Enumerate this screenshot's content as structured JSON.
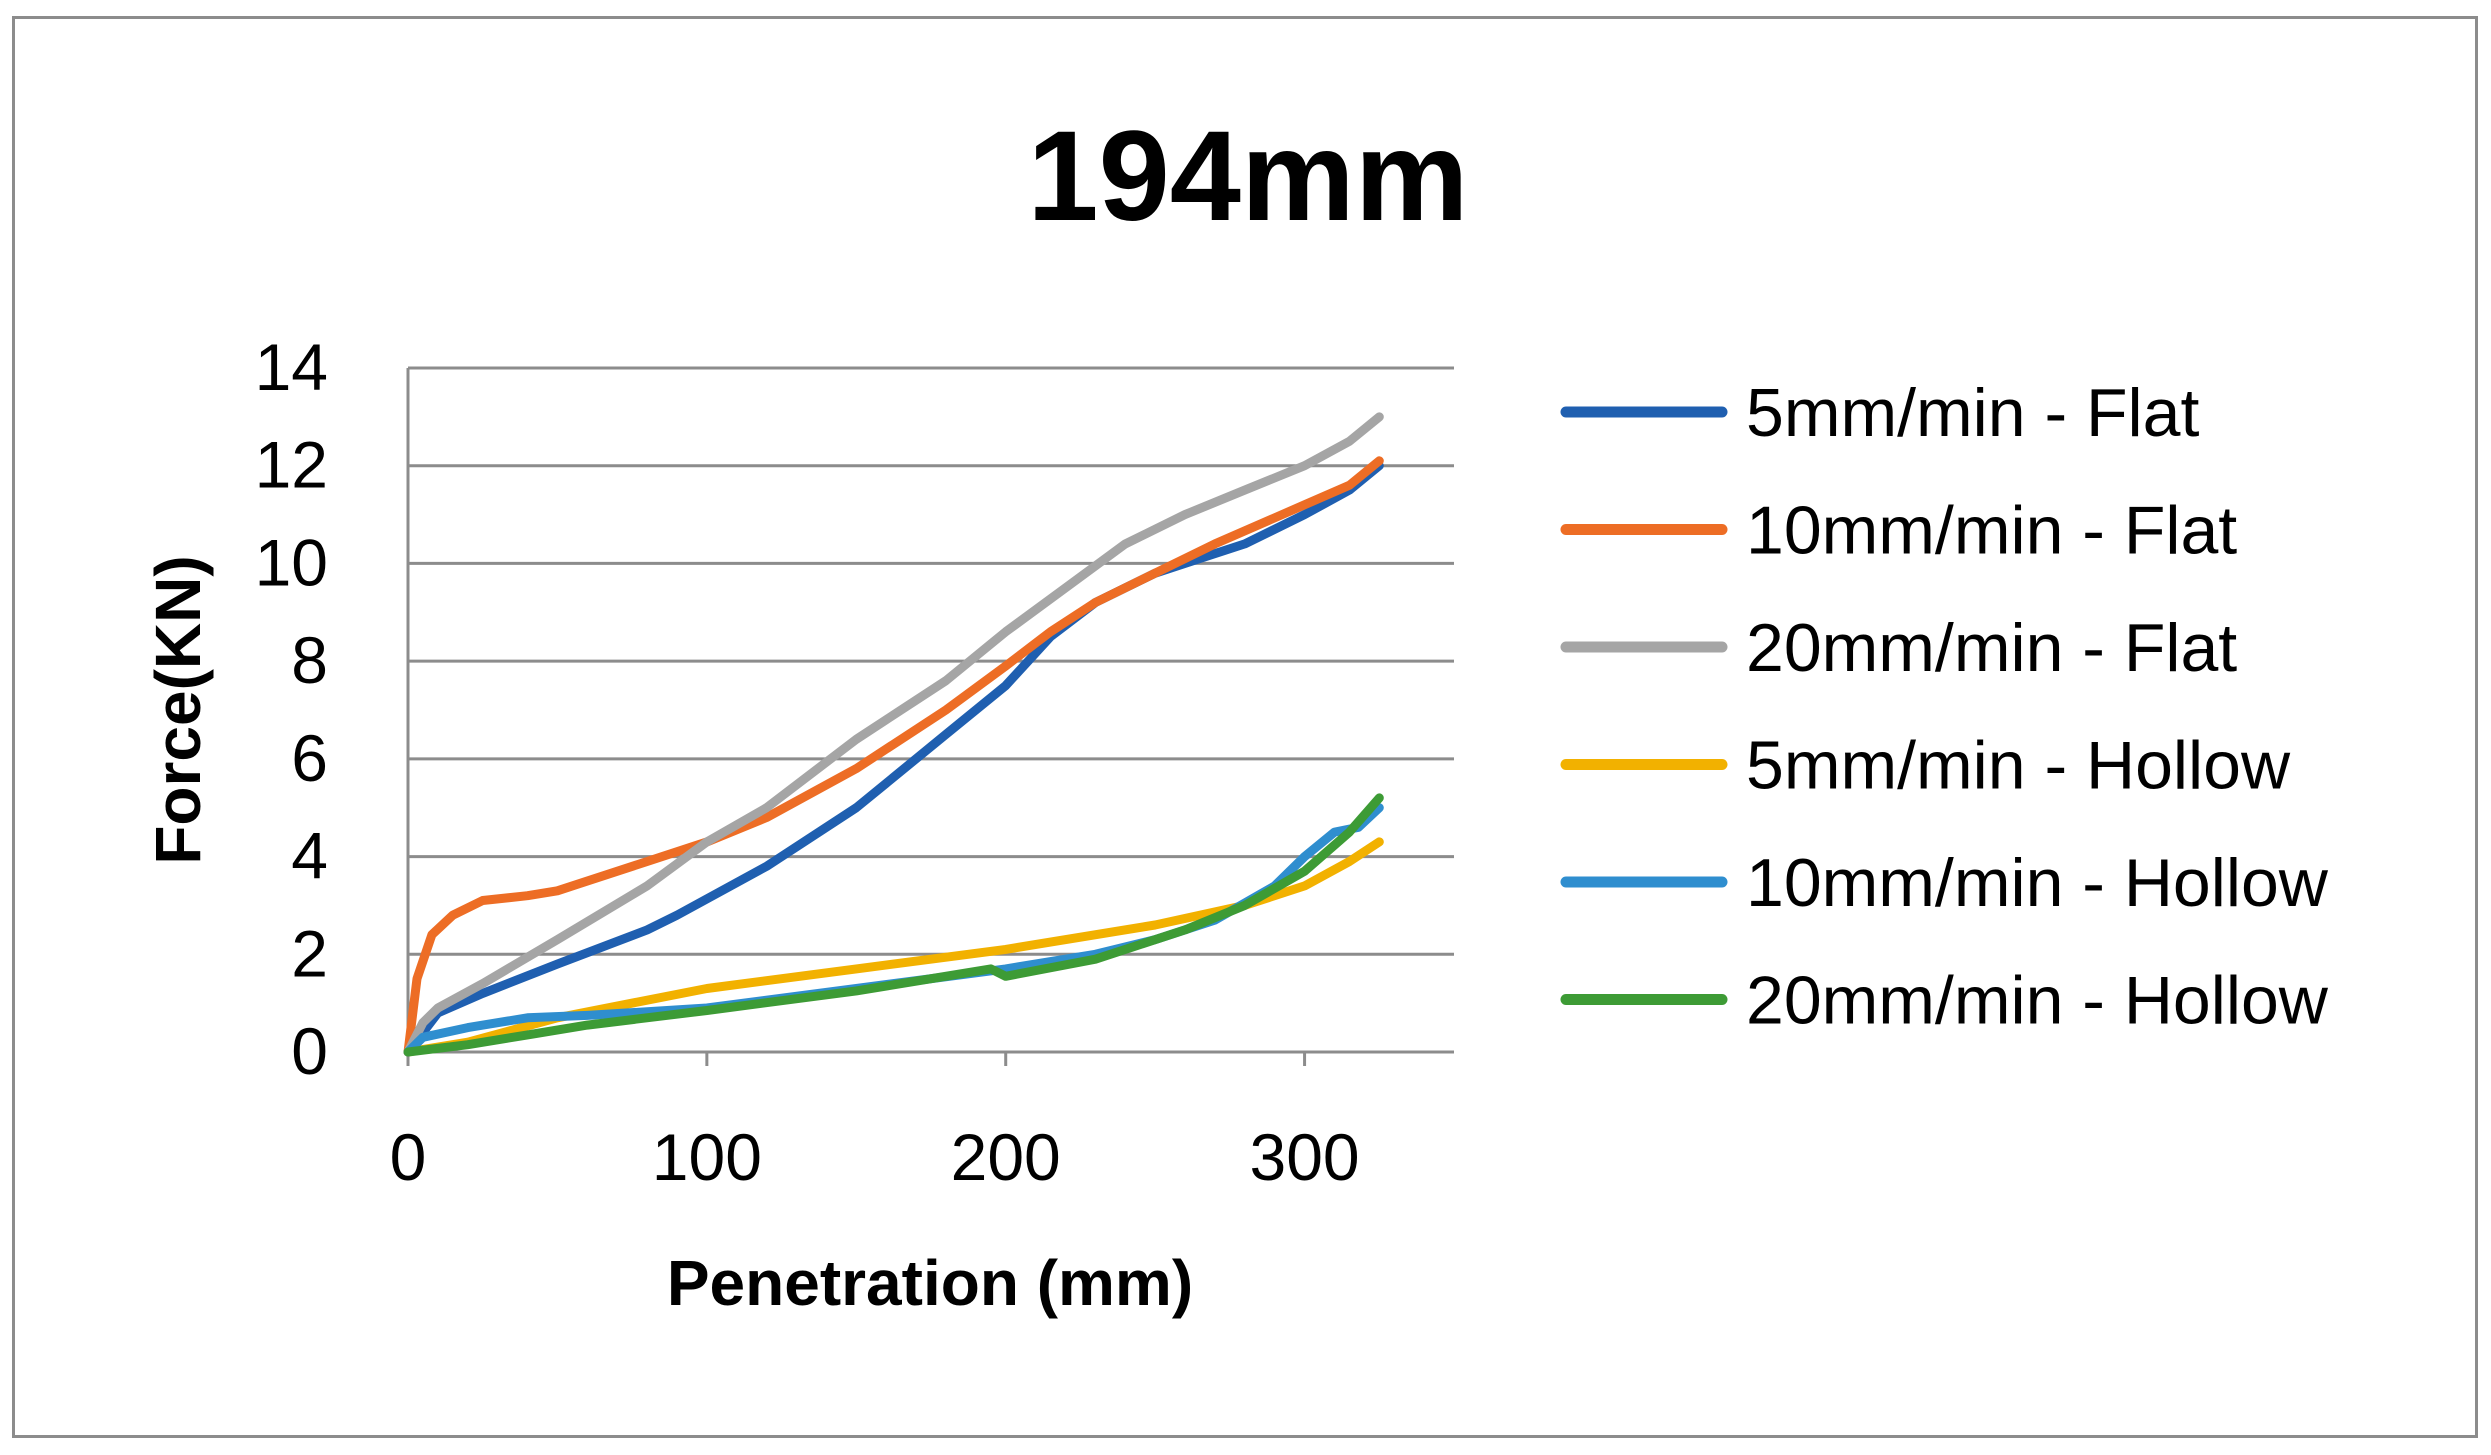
{
  "chart_data": {
    "type": "line",
    "title": "194mm",
    "xlabel": "Penetration (mm)",
    "ylabel": "Force(KN)",
    "xlim": [
      0,
      350
    ],
    "ylim": [
      0,
      14
    ],
    "xticks": [
      "0",
      "100",
      "200",
      "300"
    ],
    "yticks": [
      "0",
      "2",
      "4",
      "6",
      "8",
      "10",
      "12",
      "14"
    ],
    "grid": "horizontal",
    "legend_position": "right",
    "series": [
      {
        "name": "5mm/min - Flat",
        "color": "#1f5fb0",
        "x": [
          0,
          5,
          10,
          25,
          50,
          80,
          90,
          120,
          150,
          180,
          200,
          215,
          230,
          250,
          265,
          280,
          300,
          315,
          325
        ],
        "y": [
          0,
          0.4,
          0.8,
          1.2,
          1.8,
          2.5,
          2.8,
          3.8,
          5.0,
          6.5,
          7.5,
          8.5,
          9.2,
          9.8,
          10.1,
          10.4,
          11.0,
          11.5,
          12.0
        ]
      },
      {
        "name": "10mm/min - Flat",
        "color": "#ed6d25",
        "x": [
          0,
          3,
          8,
          15,
          25,
          40,
          50,
          80,
          100,
          120,
          150,
          180,
          200,
          215,
          230,
          250,
          270,
          300,
          315,
          325
        ],
        "y": [
          0,
          1.5,
          2.4,
          2.8,
          3.1,
          3.2,
          3.3,
          3.9,
          4.3,
          4.8,
          5.8,
          7.0,
          7.9,
          8.6,
          9.2,
          9.8,
          10.4,
          11.2,
          11.6,
          12.1
        ]
      },
      {
        "name": "20mm/min - Flat",
        "color": "#a5a5a5",
        "x": [
          0,
          5,
          10,
          25,
          50,
          80,
          100,
          120,
          150,
          180,
          200,
          220,
          240,
          260,
          280,
          300,
          315,
          325
        ],
        "y": [
          0,
          0.6,
          0.9,
          1.4,
          2.3,
          3.4,
          4.3,
          5.0,
          6.4,
          7.6,
          8.6,
          9.5,
          10.4,
          11.0,
          11.5,
          12.0,
          12.5,
          13.0
        ]
      },
      {
        "name": "5mm/min - Hollow",
        "color": "#f2b100",
        "x": [
          0,
          20,
          50,
          100,
          150,
          200,
          250,
          280,
          300,
          315,
          325
        ],
        "y": [
          0,
          0.2,
          0.7,
          1.3,
          1.7,
          2.1,
          2.6,
          3.0,
          3.4,
          3.9,
          4.3
        ]
      },
      {
        "name": "10mm/min - Hollow",
        "color": "#2f8ecf",
        "x": [
          0,
          5,
          20,
          40,
          60,
          100,
          150,
          200,
          230,
          250,
          270,
          290,
          300,
          310,
          318,
          325
        ],
        "y": [
          0,
          0.3,
          0.5,
          0.7,
          0.75,
          0.9,
          1.3,
          1.7,
          2.0,
          2.3,
          2.7,
          3.4,
          4.0,
          4.5,
          4.6,
          5.0
        ]
      },
      {
        "name": "20mm/min - Hollow",
        "color": "#3d9b35",
        "x": [
          0,
          20,
          40,
          60,
          100,
          150,
          195,
          200,
          230,
          260,
          280,
          300,
          315,
          325
        ],
        "y": [
          0,
          0.15,
          0.35,
          0.55,
          0.85,
          1.25,
          1.7,
          1.55,
          1.9,
          2.5,
          3.0,
          3.7,
          4.5,
          5.2
        ]
      }
    ]
  }
}
